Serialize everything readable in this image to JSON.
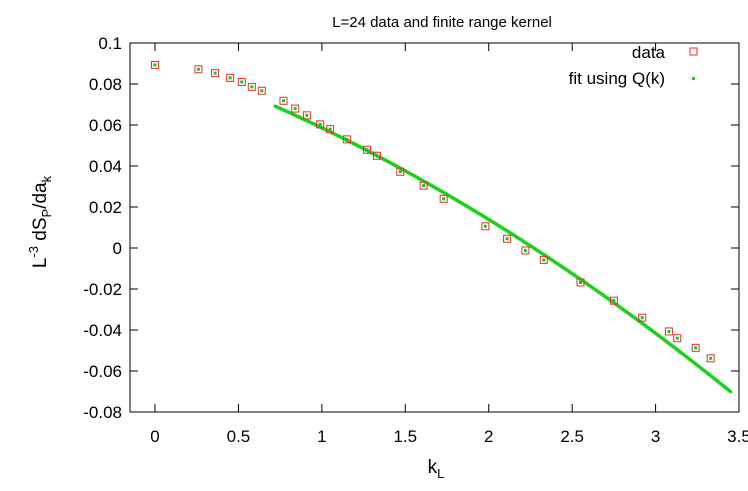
{
  "chart_data": {
    "type": "scatter",
    "title": "L=24 data and finite range kernel",
    "xlabel": "k",
    "xlabel_sub": "L",
    "ylabel_parts": {
      "prefix": "L",
      "sup": "-3",
      "mid": " dS",
      "sub1": "P",
      "mid2": "/da",
      "sub2": "k"
    },
    "xlim": [
      -0.15,
      3.5
    ],
    "ylim": [
      -0.08,
      0.1
    ],
    "xticks": [
      "0",
      "0.5",
      "1",
      "1.5",
      "2",
      "2.5",
      "3",
      "3.5"
    ],
    "xtick_values": [
      0,
      0.5,
      1,
      1.5,
      2,
      2.5,
      3,
      3.5
    ],
    "yticks": [
      "0.1",
      "0.08",
      "0.06",
      "0.04",
      "0.02",
      "0",
      "-0.02",
      "-0.04",
      "-0.06",
      "-0.08"
    ],
    "ytick_values": [
      0.1,
      0.08,
      0.06,
      0.04,
      0.02,
      0,
      -0.02,
      -0.04,
      -0.06,
      -0.08
    ],
    "grid": false,
    "legend_position": "top-right",
    "series": [
      {
        "name": "data",
        "marker": "open-square",
        "color": "#e0302a",
        "fill": "#1fc01f",
        "x": [
          0.0,
          0.26,
          0.36,
          0.45,
          0.52,
          0.58,
          0.64,
          0.77,
          0.84,
          0.91,
          0.99,
          1.05,
          1.15,
          1.27,
          1.33,
          1.47,
          1.61,
          1.73,
          1.98,
          2.11,
          2.22,
          2.33,
          2.55,
          2.75,
          2.92,
          3.08,
          3.13,
          3.24,
          3.33
        ],
        "y": [
          0.0893,
          0.0872,
          0.0853,
          0.083,
          0.081,
          0.0786,
          0.0767,
          0.0718,
          0.068,
          0.0647,
          0.0603,
          0.058,
          0.053,
          0.0479,
          0.045,
          0.0372,
          0.0304,
          0.024,
          0.0106,
          0.0045,
          -0.0012,
          -0.0058,
          -0.0168,
          -0.0257,
          -0.034,
          -0.0407,
          -0.044,
          -0.0487,
          -0.0538
        ]
      },
      {
        "name": "fit using Q(k)",
        "marker": "dot",
        "color": "#1fd01f",
        "x_range": [
          0.72,
          3.45
        ],
        "model": "quadratic",
        "coefficients": [
          0.0925,
          -0.0285,
          -0.0054
        ]
      }
    ]
  }
}
